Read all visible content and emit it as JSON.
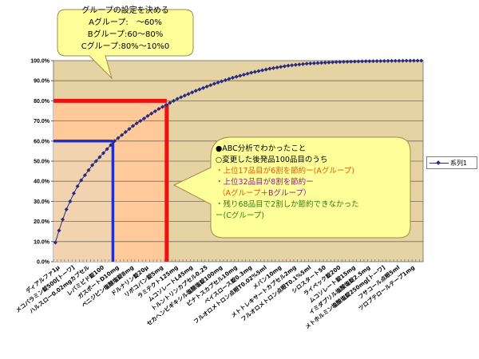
{
  "chart_data": {
    "type": "line",
    "title": "",
    "xlabel": "",
    "ylabel": "",
    "ylim": [
      0,
      100
    ],
    "ytick_labels": [
      "0.0%",
      "10.0%",
      "20.0%",
      "30.0%",
      "40.0%",
      "50.0%",
      "60.0%",
      "70.0%",
      "80.0%",
      "90.0%",
      "100.0%"
    ],
    "grid": true,
    "legend_position": "right",
    "point_count": 100,
    "x_labels": [
      "ディアルファ1μ",
      "メコバラミン錠500[トーワ]",
      "ハルスロー0.02mgカプセル",
      "レバミピド錠100",
      "ガスポートD10mg",
      "ベニジピン塩酸塩錠8mg",
      "ドルナリン錠20μ",
      "リボコバン錠5mg",
      "ラミテクト125mg",
      "ムコソレートL45mg",
      "トルントリンカプセル0.25",
      "セカヘンビギキシル塩酸塩錠100mg",
      "ピナトスカプセル10mg",
      "ベイスロース錠0.3mg",
      "フルオロメトロン点眼T0.02%5ml",
      "メバン10mg",
      "メトトレキサートカプセル2mg",
      "フルオロメトロン点眼T0.1%5ml",
      "シロスタート50",
      "ライペック錠200",
      "ムコソレート錠15mg",
      "イミダプリル塩酸塩錠2.5mg",
      "メトホルミン塩酸塩錠250mg[トーワ]",
      "フサコール点眼5ml",
      "ツロブテロールテープ1mg"
    ],
    "series": [
      {
        "name": "系列1",
        "color": "#2a2a80",
        "values": [
          9.5,
          15.5,
          21,
          26,
          30,
          34,
          37.5,
          40.5,
          43,
          45.5,
          48,
          50,
          52,
          54,
          56,
          58,
          60,
          61.5,
          63,
          64.5,
          66,
          67.5,
          68.8,
          70,
          71.2,
          72.5,
          73.7,
          74.8,
          76,
          77,
          78,
          79,
          80,
          81,
          81.8,
          82.6,
          83.4,
          84.2,
          85,
          85.7,
          86.4,
          87.1,
          87.8,
          88.5,
          89.1,
          89.7,
          90.3,
          90.9,
          91.5,
          92,
          92.5,
          93,
          93.5,
          94,
          94.4,
          94.8,
          95.2,
          95.6,
          96,
          96.3,
          96.6,
          96.9,
          97.2,
          97.5,
          97.7,
          97.9,
          98.1,
          98.3,
          98.5,
          98.6,
          98.7,
          98.8,
          98.9,
          99,
          99.1,
          99.2,
          99.3,
          99.35,
          99.4,
          99.45,
          99.5,
          99.55,
          99.6,
          99.65,
          99.7,
          99.72,
          99.75,
          99.78,
          99.8,
          99.83,
          99.86,
          99.88,
          99.9,
          99.92,
          99.94,
          99.96,
          99.97,
          99.98,
          99.99,
          100
        ]
      }
    ],
    "annotations": {
      "a_group_cutoff_item": 17,
      "a_group_cutoff_pct": 60,
      "b_group_cutoff_item": 32,
      "b_group_cutoff_pct": 80,
      "colors": {
        "a_line": "#2030d0",
        "b_line": "#ee1111",
        "plot_bg": "#e6d3a3",
        "a_region": "#f2d3b0",
        "b_region": "#ffc99a",
        "callout_fill": "#ffff99"
      }
    }
  },
  "legend": {
    "label": "系列1"
  },
  "callout_groups": {
    "title": "グループの設定を決める",
    "line_a": "Aグループ:　～60%",
    "line_b": "Bグループ:60～80%",
    "line_c": "Cグループ:80%～10%0"
  },
  "callout_analysis": {
    "heading": "●ABC分析でわかったこと",
    "line1": "○変更した後発品100品目のうち",
    "line2": "・上位17品目が6割を節約ー(Aグループ)",
    "line3a": "・上位32品目が8割を節約ー",
    "line3b_part1": "（Aグループ",
    "line3b_part2": "＋Bグループ）",
    "line4a": "・残り68品目で2割しか節約できなかった",
    "line4b": "ー(Cグループ)"
  }
}
